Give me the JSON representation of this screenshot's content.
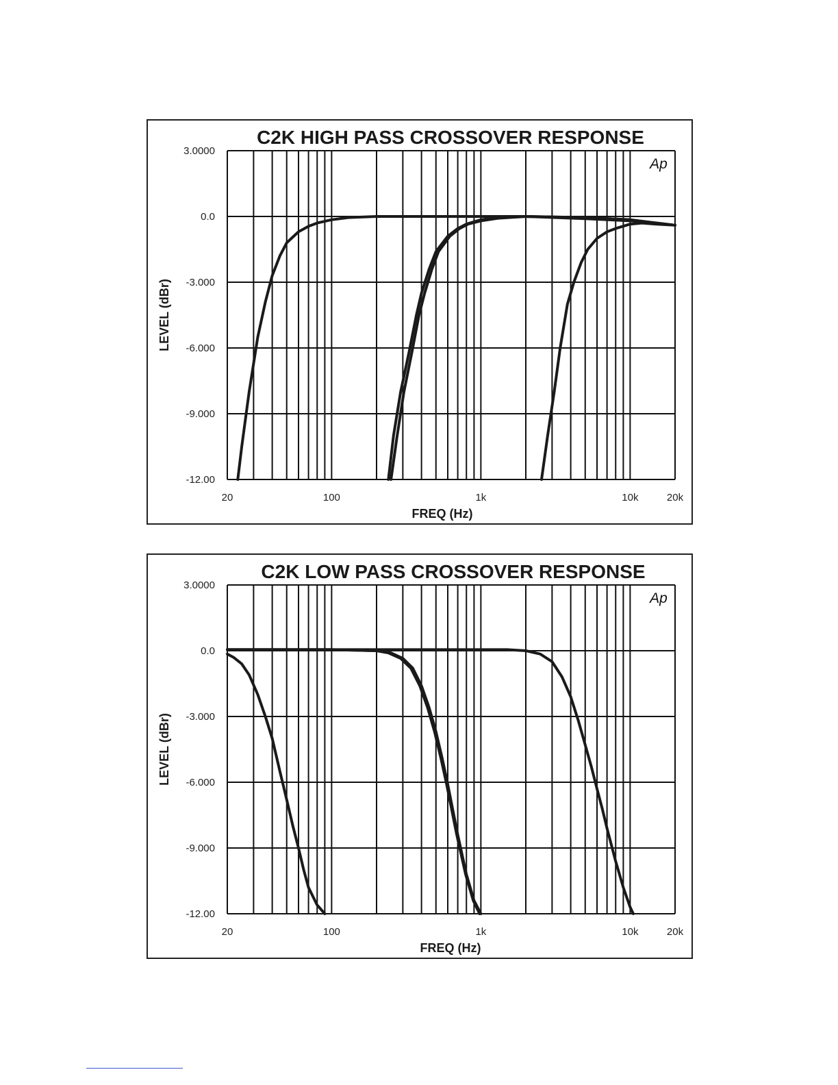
{
  "chart_data": [
    {
      "type": "line",
      "title": "C2K HIGH PASS CROSSOVER RESPONSE",
      "xlabel": "FREQ (Hz)",
      "ylabel": "LEVEL (dBr)",
      "x_scale": "log",
      "xlim": [
        20,
        20000
      ],
      "ylim": [
        -12,
        3
      ],
      "x_ticks": [
        {
          "value": 20,
          "label": "20"
        },
        {
          "value": 100,
          "label": "100"
        },
        {
          "value": 1000,
          "label": "1k"
        },
        {
          "value": 10000,
          "label": "10k"
        },
        {
          "value": 20000,
          "label": "20k"
        }
      ],
      "y_ticks": [
        {
          "value": 3,
          "label": "3.0000"
        },
        {
          "value": 0,
          "label": "0.0"
        },
        {
          "value": -3,
          "label": "-3.000"
        },
        {
          "value": -6,
          "label": "-6.000"
        },
        {
          "value": -9,
          "label": "-9.000"
        },
        {
          "value": -12,
          "label": "-12.00"
        }
      ],
      "logo": "Ap",
      "grid": true,
      "series": [
        {
          "x": [
            23.5,
            25,
            28,
            32,
            36,
            40,
            45,
            50,
            60,
            70,
            80,
            100,
            130,
            200,
            500,
            1000,
            2000,
            5000,
            10000,
            15000,
            20000
          ],
          "y": [
            -12,
            -10.5,
            -8,
            -5.5,
            -3.9,
            -2.7,
            -1.8,
            -1.2,
            -0.7,
            -0.45,
            -0.3,
            -0.15,
            -0.05,
            0,
            0,
            0,
            0,
            -0.1,
            -0.2,
            -0.3,
            -0.4
          ]
        },
        {
          "x": [
            240,
            260,
            290,
            330,
            370,
            400,
            450,
            500,
            600,
            700,
            800,
            1000,
            1300,
            2000,
            5000,
            10000,
            15000,
            20000
          ],
          "y": [
            -12,
            -10,
            -8,
            -6.2,
            -4.5,
            -3.5,
            -2.4,
            -1.6,
            -0.9,
            -0.55,
            -0.35,
            -0.15,
            -0.05,
            0,
            -0.05,
            -0.15,
            -0.3,
            -0.4
          ]
        },
        {
          "x": [
            250,
            275,
            305,
            345,
            385,
            420,
            470,
            520,
            620,
            720,
            820,
            1000,
            1300,
            2000,
            5000,
            10000,
            15000,
            20000
          ],
          "y": [
            -12,
            -10,
            -8,
            -6.2,
            -4.5,
            -3.5,
            -2.4,
            -1.6,
            -0.9,
            -0.55,
            -0.35,
            -0.2,
            -0.08,
            0,
            -0.05,
            -0.15,
            -0.3,
            -0.4
          ]
        },
        {
          "x": [
            2550,
            2800,
            3100,
            3400,
            3800,
            4200,
            4700,
            5200,
            6000,
            7000,
            8000,
            10000,
            12000,
            15000,
            20000
          ],
          "y": [
            -12,
            -10,
            -8,
            -6,
            -4,
            -3,
            -2.1,
            -1.5,
            -1,
            -0.7,
            -0.55,
            -0.35,
            -0.3,
            -0.35,
            -0.4
          ]
        }
      ]
    },
    {
      "type": "line",
      "title": "C2K LOW PASS CROSSOVER RESPONSE",
      "xlabel": "FREQ (Hz)",
      "ylabel": "LEVEL (dBr)",
      "x_scale": "log",
      "xlim": [
        20,
        20000
      ],
      "ylim": [
        -12,
        3
      ],
      "x_ticks": [
        {
          "value": 20,
          "label": "20"
        },
        {
          "value": 100,
          "label": "100"
        },
        {
          "value": 1000,
          "label": "1k"
        },
        {
          "value": 10000,
          "label": "10k"
        },
        {
          "value": 20000,
          "label": "20k"
        }
      ],
      "y_ticks": [
        {
          "value": 3,
          "label": "3.0000"
        },
        {
          "value": 0,
          "label": "0.0"
        },
        {
          "value": -3,
          "label": "-3.000"
        },
        {
          "value": -6,
          "label": "-6.000"
        },
        {
          "value": -9,
          "label": "-9.000"
        },
        {
          "value": -12,
          "label": "-12.00"
        }
      ],
      "logo": "Ap",
      "grid": true,
      "series": [
        {
          "x": [
            20,
            22,
            25,
            28,
            32,
            36,
            40,
            45,
            50,
            55,
            60,
            65,
            70,
            80,
            90
          ],
          "y": [
            -0.15,
            -0.3,
            -0.6,
            -1.1,
            -2,
            -3,
            -4,
            -5.5,
            -6.8,
            -8,
            -9,
            -10,
            -10.8,
            -11.6,
            -12
          ]
        },
        {
          "x": [
            20,
            100,
            200,
            250,
            300,
            350,
            400,
            450,
            500,
            550,
            600,
            650,
            700,
            800,
            900,
            1000
          ],
          "y": [
            0.05,
            0.05,
            0,
            -0.1,
            -0.35,
            -0.8,
            -1.6,
            -2.6,
            -3.7,
            -4.9,
            -6.1,
            -7.3,
            -8.4,
            -10.2,
            -11.4,
            -12
          ]
        },
        {
          "x": [
            20,
            100,
            200,
            240,
            290,
            340,
            390,
            440,
            490,
            540,
            590,
            640,
            690,
            790,
            890,
            980
          ],
          "y": [
            0.05,
            0.05,
            0,
            -0.1,
            -0.35,
            -0.8,
            -1.6,
            -2.6,
            -3.7,
            -4.9,
            -6.1,
            -7.3,
            -8.4,
            -10.2,
            -11.4,
            -12
          ]
        },
        {
          "x": [
            20,
            1000,
            1500,
            2000,
            2500,
            3000,
            3500,
            4000,
            4500,
            5000,
            5500,
            6000,
            6500,
            7000,
            8000,
            9000,
            10000,
            10500
          ],
          "y": [
            0.05,
            0.05,
            0.05,
            0,
            -0.15,
            -0.5,
            -1.2,
            -2.1,
            -3.2,
            -4.3,
            -5.3,
            -6.3,
            -7.2,
            -8.1,
            -9.6,
            -10.8,
            -11.7,
            -12
          ]
        }
      ]
    }
  ]
}
